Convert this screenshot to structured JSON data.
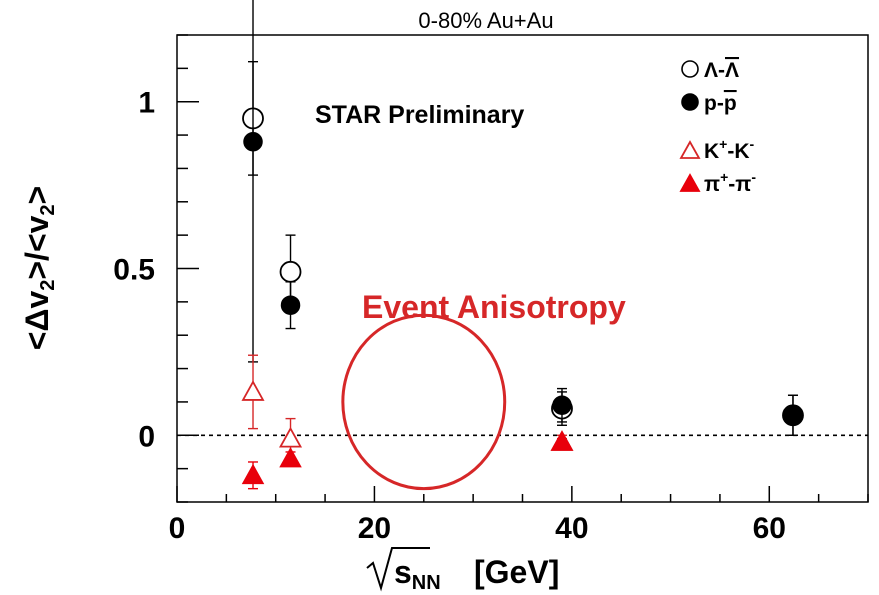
{
  "chart_data": {
    "type": "scatter",
    "title": "0-80% Au+Au",
    "xlabel": "√s_NN [GeV]",
    "xlabel_parts": {
      "root": "s",
      "sub": "NN",
      "unit": "[GeV]"
    },
    "ylabel": "<Δv2>/<v2>",
    "ylabel_parts": {
      "open": "<Δv",
      "sub": "2",
      "mid": ">/<v",
      "close": ">"
    },
    "xlim": [
      0,
      70
    ],
    "ylim": [
      -0.2,
      1.2
    ],
    "xticks": [
      0,
      20,
      40,
      60
    ],
    "xtick_labels": [
      "0",
      "20",
      "40",
      "60"
    ],
    "yticks": [
      0,
      0.5,
      1
    ],
    "ytick_labels": [
      "0",
      "0.5",
      "1"
    ],
    "grid": false,
    "reference_line": 0,
    "legend_position": "top-right",
    "annotations": {
      "preliminary": "STAR Preliminary",
      "highlight": "Event Anisotropy"
    },
    "highlight_ellipse": {
      "cx": 25,
      "cy": 0.1,
      "rx": 8.2,
      "ry": 0.26,
      "color": "#d62728"
    },
    "series": [
      {
        "name_parts": [
          "Λ-",
          "Λ"
        ],
        "marker": "circle-open",
        "color": "#000000",
        "x": [
          7.7,
          11.5,
          39,
          62.4
        ],
        "y": [
          0.95,
          0.49,
          0.08,
          0.06
        ],
        "err": [
          0.17,
          0.11,
          0.05,
          0.06
        ]
      },
      {
        "name_parts": [
          "p-",
          "p"
        ],
        "marker": "circle-filled",
        "color": "#000000",
        "x": [
          7.7,
          11.5,
          39,
          62.4
        ],
        "y": [
          0.88,
          0.39,
          0.09,
          0.06
        ],
        "err": [
          0.66,
          0.07,
          0.05,
          0.06
        ]
      },
      {
        "name_parts": [
          "K",
          "+",
          "-K",
          "-"
        ],
        "marker": "triangle-open",
        "color": "#d62728",
        "x": [
          7.7,
          11.5,
          39
        ],
        "y": [
          0.13,
          -0.01,
          -0.02
        ],
        "err": [
          0.11,
          0.06,
          0.02
        ]
      },
      {
        "name_parts": [
          "π",
          "+",
          "-π",
          "-"
        ],
        "marker": "triangle-filled",
        "color": "#e8000b",
        "x": [
          7.7,
          11.5,
          39
        ],
        "y": [
          -0.12,
          -0.07,
          -0.02
        ],
        "err": [
          0.04,
          0.02,
          0.01
        ]
      }
    ]
  }
}
